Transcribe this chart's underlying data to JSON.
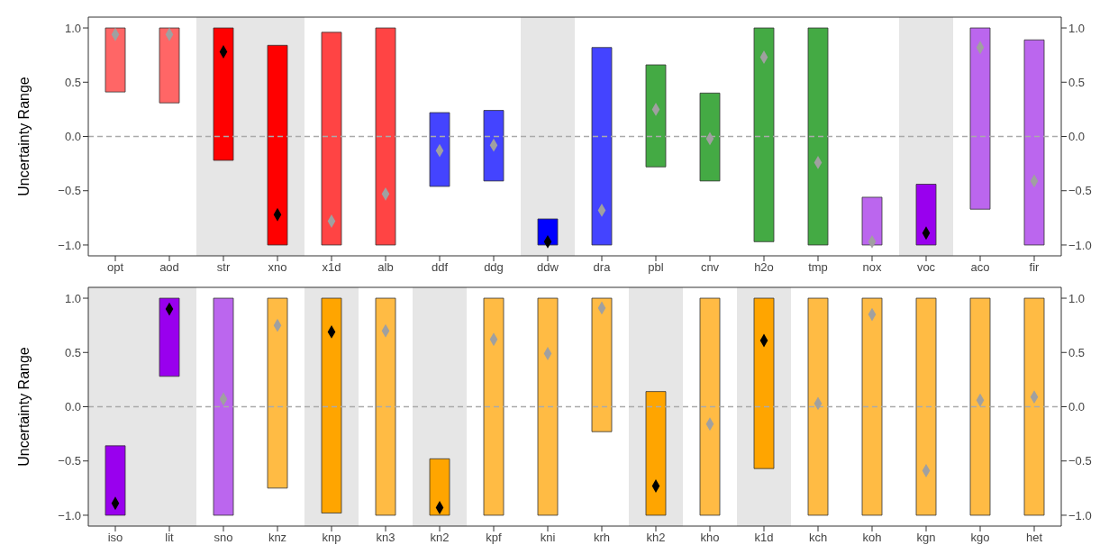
{
  "chart_data": [
    {
      "type": "bar",
      "ylabel": "Uncertainty Range",
      "categories": [
        "opt",
        "aod",
        "str",
        "xno",
        "x1d",
        "alb",
        "ddf",
        "ddg",
        "ddw",
        "dra",
        "pbl",
        "cnv",
        "h2o",
        "tmp",
        "nox",
        "voc",
        "aco",
        "fir"
      ],
      "series": [
        {
          "base": [
            0.41,
            0.31,
            -0.22,
            -1.0,
            -1.0,
            -1.0,
            -0.46,
            -0.41,
            -1.0,
            -1.0,
            -0.28,
            -0.41,
            -0.97,
            -1.0,
            -1.0,
            -1.0,
            -0.67,
            -1.0
          ],
          "values": [
            0.59,
            0.69,
            1.22,
            1.84,
            1.96,
            2.0,
            0.68,
            0.65,
            0.24,
            1.82,
            0.94,
            0.81,
            1.97,
            2.0,
            0.44,
            0.56,
            1.67,
            1.89
          ],
          "colors": [
            "#ff6666",
            "#ff6666",
            "#ff0000",
            "#ff0000",
            "#ff4444",
            "#ff4444",
            "#4444ff",
            "#4444ff",
            "#0000ff",
            "#4444ff",
            "#44aa44",
            "#44aa44",
            "#44aa44",
            "#44aa44",
            "#bb66ee",
            "#9900ee",
            "#bb66ee",
            "#bb66ee"
          ]
        },
        {
          "type": "scatter",
          "marker": "diamond",
          "x": [
            "opt",
            "aod",
            "str",
            "xno",
            "x1d",
            "alb",
            "ddf",
            "ddg",
            "ddw",
            "dra",
            "pbl",
            "cnv",
            "h2o",
            "tmp",
            "nox",
            "voc",
            "aco",
            "fir"
          ],
          "values": [
            0.94,
            0.94,
            0.78,
            -0.72,
            -0.78,
            -0.53,
            -0.13,
            -0.08,
            -0.97,
            -0.68,
            0.25,
            -0.02,
            0.73,
            -0.24,
            -0.97,
            -0.89,
            0.82,
            -0.41
          ],
          "colors": [
            "#a0a0a0",
            "#a0a0a0",
            "#000000",
            "#000000",
            "#a0a0a0",
            "#a0a0a0",
            "#a0a0a0",
            "#a0a0a0",
            "#000000",
            "#a0a0a0",
            "#a0a0a0",
            "#a0a0a0",
            "#a0a0a0",
            "#a0a0a0",
            "#a0a0a0",
            "#000000",
            "#a0a0a0",
            "#a0a0a0"
          ]
        }
      ],
      "ylim": [
        -1.1,
        1.1
      ],
      "yticks": [
        {
          "value": -1,
          "label": "−1.0"
        },
        {
          "value": -0.5,
          "label": "−0.5"
        },
        {
          "value": 0,
          "label": "0.0"
        },
        {
          "value": 0.5,
          "label": "0.5"
        },
        {
          "value": 1,
          "label": "1.0"
        }
      ],
      "y2lim": [
        -1.1,
        1.1
      ],
      "y2ticks": [
        {
          "value": -1,
          "label": "−1.0"
        },
        {
          "value": -0.5,
          "label": "−0.5"
        },
        {
          "value": 0,
          "label": "0.0"
        },
        {
          "value": 0.5,
          "label": "0.5"
        },
        {
          "value": 1,
          "label": "1.0"
        }
      ],
      "ref_lines": [
        {
          "axis": "y",
          "value": 0,
          "color": "#aaaaaa",
          "line_style": "dashed"
        }
      ],
      "bands": [
        {
          "axis": "x",
          "from": "str",
          "to": "xno",
          "color": "#e6e6e6"
        },
        {
          "axis": "x",
          "from": "ddw",
          "to": "ddw",
          "color": "#e6e6e6"
        },
        {
          "axis": "x",
          "from": "voc",
          "to": "voc",
          "color": "#e6e6e6"
        }
      ]
    },
    {
      "type": "bar",
      "ylabel": "Uncertainty Range",
      "categories": [
        "iso",
        "lit",
        "sno",
        "knz",
        "knp",
        "kn3",
        "kn2",
        "kpf",
        "kni",
        "krh",
        "kh2",
        "kho",
        "k1d",
        "kch",
        "koh",
        "kgn",
        "kgo",
        "het"
      ],
      "series": [
        {
          "base": [
            -1.0,
            0.28,
            -1.0,
            -0.75,
            -0.98,
            -1.0,
            -1.0,
            -1.0,
            -1.0,
            -0.23,
            -1.0,
            -1.0,
            -0.57,
            -1.0,
            -1.0,
            -1.0,
            -1.0,
            -1.0
          ],
          "values": [
            0.64,
            0.72,
            2.0,
            1.75,
            1.98,
            2.0,
            0.52,
            2.0,
            2.0,
            1.23,
            1.14,
            2.0,
            1.57,
            2.0,
            2.0,
            2.0,
            2.0,
            2.0
          ],
          "colors": [
            "#9900ee",
            "#9900ee",
            "#bb66ee",
            "#ffbb44",
            "#ffa500",
            "#ffbb44",
            "#ffa500",
            "#ffbb44",
            "#ffbb44",
            "#ffbb44",
            "#ffa500",
            "#ffbb44",
            "#ffa500",
            "#ffbb44",
            "#ffbb44",
            "#ffbb44",
            "#ffbb44",
            "#ffbb44"
          ]
        },
        {
          "type": "scatter",
          "marker": "diamond",
          "x": [
            "iso",
            "lit",
            "sno",
            "knz",
            "knp",
            "kn3",
            "kn2",
            "kpf",
            "kni",
            "krh",
            "kh2",
            "kho",
            "k1d",
            "kch",
            "koh",
            "kgn",
            "kgo",
            "het"
          ],
          "values": [
            -0.89,
            0.9,
            0.07,
            0.75,
            0.69,
            0.7,
            -0.93,
            0.62,
            0.49,
            0.91,
            -0.73,
            -0.16,
            0.61,
            0.03,
            0.85,
            -0.59,
            0.06,
            0.09
          ],
          "colors": [
            "#000000",
            "#000000",
            "#a0a0a0",
            "#a0a0a0",
            "#000000",
            "#a0a0a0",
            "#000000",
            "#a0a0a0",
            "#a0a0a0",
            "#a0a0a0",
            "#000000",
            "#a0a0a0",
            "#000000",
            "#a0a0a0",
            "#a0a0a0",
            "#a0a0a0",
            "#a0a0a0",
            "#a0a0a0"
          ]
        }
      ],
      "ylim": [
        -1.1,
        1.1
      ],
      "yticks": [
        {
          "value": -1,
          "label": "−1.0"
        },
        {
          "value": -0.5,
          "label": "−0.5"
        },
        {
          "value": 0,
          "label": "0.0"
        },
        {
          "value": 0.5,
          "label": "0.5"
        },
        {
          "value": 1,
          "label": "1.0"
        }
      ],
      "y2lim": [
        -1.1,
        1.1
      ],
      "y2ticks": [
        {
          "value": -1,
          "label": "−1.0"
        },
        {
          "value": -0.5,
          "label": "−0.5"
        },
        {
          "value": 0,
          "label": "0.0"
        },
        {
          "value": 0.5,
          "label": "0.5"
        },
        {
          "value": 1,
          "label": "1.0"
        }
      ],
      "ref_lines": [
        {
          "axis": "y",
          "value": 0,
          "color": "#aaaaaa",
          "line_style": "dashed"
        }
      ],
      "bands": [
        {
          "axis": "x",
          "from": "iso",
          "to": "lit",
          "color": "#e6e6e6"
        },
        {
          "axis": "x",
          "from": "knp",
          "to": "knp",
          "color": "#e6e6e6"
        },
        {
          "axis": "x",
          "from": "kn2",
          "to": "kn2",
          "color": "#e6e6e6"
        },
        {
          "axis": "x",
          "from": "kh2",
          "to": "kh2",
          "color": "#e6e6e6"
        },
        {
          "axis": "x",
          "from": "k1d",
          "to": "k1d",
          "color": "#e6e6e6"
        }
      ]
    }
  ]
}
